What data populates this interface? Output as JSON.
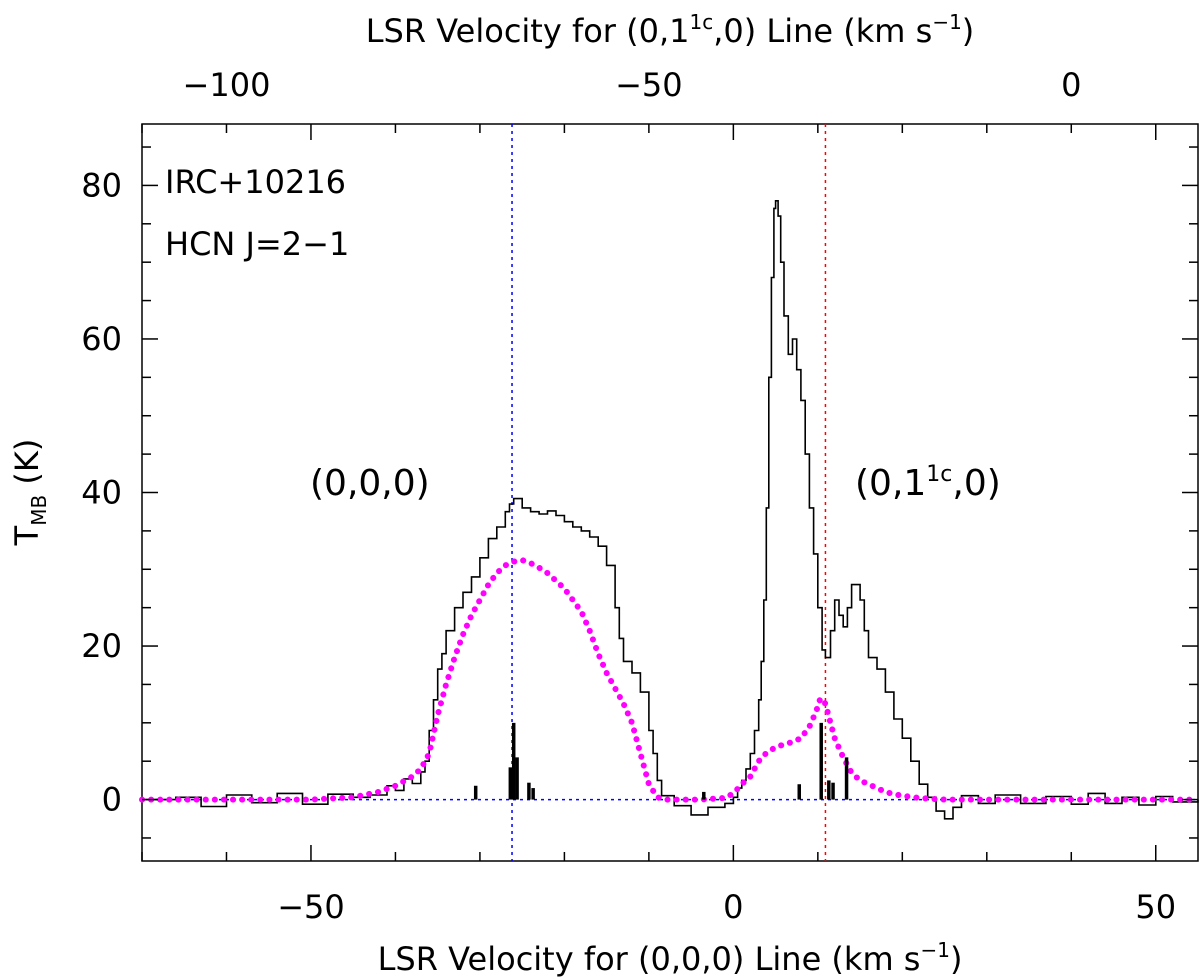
{
  "chart_data": {
    "type": "line",
    "object": "IRC+10216",
    "transition": "HCN J=2−1",
    "xlabel_prefix": "LSR Velocity for (0,0,0) Line (km s",
    "xlabel_sup": "−1",
    "xlabel_suffix": ")",
    "top_xlabel_prefix": "LSR Velocity for (0,1",
    "top_xlabel_sup1": "1c",
    "top_xlabel_mid": ",0) Line (km s",
    "top_xlabel_sup2": "−1",
    "top_xlabel_suffix": ")",
    "ylabel_main": "T",
    "ylabel_sub": "MB",
    "ylabel_suffix": " (K)",
    "xlim": [
      -70,
      55
    ],
    "ylim": [
      -8,
      88
    ],
    "top_xlim": [
      -110,
      15
    ],
    "x_ticks": [
      {
        "value": -50,
        "label": "−50"
      },
      {
        "value": 0,
        "label": "0"
      },
      {
        "value": 50,
        "label": "50"
      }
    ],
    "y_ticks": [
      {
        "value": 0,
        "label": "0"
      },
      {
        "value": 20,
        "label": "20"
      },
      {
        "value": 40,
        "label": "40"
      },
      {
        "value": 60,
        "label": "60"
      },
      {
        "value": 80,
        "label": "80"
      }
    ],
    "top_ticks": [
      {
        "value": -100,
        "label": "−100"
      },
      {
        "value": -50,
        "label": "−50"
      },
      {
        "value": 0,
        "label": "0"
      }
    ],
    "annotations": {
      "ground_prefix": "(0,0,0)",
      "vib_prefix": "(0,1",
      "vib_sup": "1c",
      "vib_suffix": ",0)"
    },
    "ref_lines": [
      {
        "name": "ground-state-velocity",
        "axis": "x",
        "value": -26.2,
        "color": "#0000ff"
      },
      {
        "name": "vibrational-state-velocity",
        "axis": "x",
        "value": 10.9,
        "color": "#ff0000"
      },
      {
        "name": "zero-baseline",
        "axis": "y",
        "value": 0,
        "color": "#0000ff"
      }
    ],
    "series": [
      {
        "name": "observed spectrum",
        "style": "histogram",
        "color": "#000000",
        "points": [
          [
            -70,
            0.0
          ],
          [
            -66,
            0.3
          ],
          [
            -63,
            -0.9
          ],
          [
            -60,
            0.6
          ],
          [
            -57,
            -0.4
          ],
          [
            -54,
            0.8
          ],
          [
            -51,
            -0.6
          ],
          [
            -48,
            0.7
          ],
          [
            -45,
            0.3
          ],
          [
            -43,
            0.6
          ],
          [
            -41,
            1.8
          ],
          [
            -40,
            1.2
          ],
          [
            -39,
            2.7
          ],
          [
            -38,
            2.1
          ],
          [
            -37,
            3.6
          ],
          [
            -36.5,
            5.0
          ],
          [
            -36,
            9.0
          ],
          [
            -35.5,
            13.0
          ],
          [
            -35,
            17.0
          ],
          [
            -34.5,
            19.0
          ],
          [
            -34,
            22.0
          ],
          [
            -33,
            25.0
          ],
          [
            -32,
            27.0
          ],
          [
            -31,
            29.0
          ],
          [
            -30,
            31.5
          ],
          [
            -29,
            34.0
          ],
          [
            -28,
            35.5
          ],
          [
            -27,
            37.5
          ],
          [
            -26.5,
            38.5
          ],
          [
            -26,
            39.2
          ],
          [
            -25,
            38.0
          ],
          [
            -24,
            37.5
          ],
          [
            -23,
            37.2
          ],
          [
            -22,
            37.6
          ],
          [
            -21,
            37.0
          ],
          [
            -20,
            36.2
          ],
          [
            -19,
            35.5
          ],
          [
            -18,
            35.0
          ],
          [
            -17,
            34.2
          ],
          [
            -16,
            33.0
          ],
          [
            -15,
            30.5
          ],
          [
            -14,
            25.0
          ],
          [
            -13.5,
            21.0
          ],
          [
            -13,
            18.0
          ],
          [
            -12,
            16.5
          ],
          [
            -11,
            14.0
          ],
          [
            -10,
            9.0
          ],
          [
            -9.5,
            6.0
          ],
          [
            -9,
            2.5
          ],
          [
            -8.5,
            0.5
          ],
          [
            -7,
            -0.8
          ],
          [
            -5,
            -2.0
          ],
          [
            -3,
            -1.0
          ],
          [
            -1,
            -0.5
          ],
          [
            0,
            0.3
          ],
          [
            0.5,
            1.5
          ],
          [
            1,
            2.5
          ],
          [
            1.5,
            4.0
          ],
          [
            2,
            6.0
          ],
          [
            2.5,
            9.0
          ],
          [
            3,
            13.0
          ],
          [
            3.3,
            18.0
          ],
          [
            3.6,
            26.0
          ],
          [
            3.9,
            38.0
          ],
          [
            4.2,
            55.0
          ],
          [
            4.5,
            68.0
          ],
          [
            4.8,
            77.0
          ],
          [
            5.0,
            78.0
          ],
          [
            5.3,
            76.0
          ],
          [
            5.6,
            70.0
          ],
          [
            6,
            63.0
          ],
          [
            6.5,
            58.0
          ],
          [
            7,
            60.0
          ],
          [
            7.5,
            56.0
          ],
          [
            8,
            52.0
          ],
          [
            8.5,
            45.0
          ],
          [
            9,
            38.0
          ],
          [
            9.5,
            32.0
          ],
          [
            10,
            25.0
          ],
          [
            10.5,
            19.5
          ],
          [
            10.9,
            18.5
          ],
          [
            11.5,
            22.0
          ],
          [
            12,
            26.0
          ],
          [
            12.5,
            24.0
          ],
          [
            13,
            22.5
          ],
          [
            13.5,
            25.0
          ],
          [
            14,
            28.0
          ],
          [
            15,
            26.0
          ],
          [
            15.5,
            22.0
          ],
          [
            16,
            18.5
          ],
          [
            17,
            17.0
          ],
          [
            18,
            14.0
          ],
          [
            19,
            10.5
          ],
          [
            20,
            8.0
          ],
          [
            21,
            5.0
          ],
          [
            22,
            2.0
          ],
          [
            23,
            0.3
          ],
          [
            24,
            -1.5
          ],
          [
            25,
            -2.5
          ],
          [
            26,
            -1.0
          ],
          [
            27,
            0.5
          ],
          [
            29,
            -0.5
          ],
          [
            31,
            0.6
          ],
          [
            34,
            -0.5
          ],
          [
            37,
            0.4
          ],
          [
            40,
            -0.6
          ],
          [
            42,
            0.8
          ],
          [
            44,
            -0.5
          ],
          [
            46,
            0.3
          ],
          [
            48,
            -0.7
          ],
          [
            50,
            0.4
          ],
          [
            52,
            -0.3
          ],
          [
            55,
            0.0
          ]
        ]
      },
      {
        "name": "model spectrum",
        "style": "dotted",
        "color": "#ff00ff",
        "points": [
          [
            -70,
            0.0
          ],
          [
            -60,
            0.0
          ],
          [
            -50,
            0.0
          ],
          [
            -45,
            0.3
          ],
          [
            -42,
            1.0
          ],
          [
            -40,
            1.8
          ],
          [
            -38,
            3.0
          ],
          [
            -37,
            4.0
          ],
          [
            -36,
            6.0
          ],
          [
            -35,
            11.0
          ],
          [
            -34,
            15.0
          ],
          [
            -33,
            18.5
          ],
          [
            -32,
            21.5
          ],
          [
            -31,
            24.0
          ],
          [
            -30,
            26.0
          ],
          [
            -29,
            28.0
          ],
          [
            -28,
            29.5
          ],
          [
            -27,
            30.5
          ],
          [
            -26,
            31.0
          ],
          [
            -25,
            31.2
          ],
          [
            -24,
            30.8
          ],
          [
            -23,
            30.2
          ],
          [
            -22,
            29.5
          ],
          [
            -21,
            28.5
          ],
          [
            -20,
            27.5
          ],
          [
            -19,
            26.0
          ],
          [
            -18,
            24.5
          ],
          [
            -17,
            22.0
          ],
          [
            -16,
            19.0
          ],
          [
            -15,
            16.5
          ],
          [
            -14,
            14.5
          ],
          [
            -13,
            12.5
          ],
          [
            -12,
            10.0
          ],
          [
            -11,
            6.0
          ],
          [
            -10,
            2.0
          ],
          [
            -9,
            0.3
          ],
          [
            -8,
            0.0
          ],
          [
            -4,
            0.0
          ],
          [
            -1,
            0.2
          ],
          [
            0,
            0.8
          ],
          [
            1,
            2.0
          ],
          [
            2,
            3.0
          ],
          [
            3,
            5.0
          ],
          [
            4,
            6.2
          ],
          [
            5,
            6.8
          ],
          [
            6,
            7.2
          ],
          [
            7,
            7.5
          ],
          [
            8,
            8.0
          ],
          [
            9,
            9.5
          ],
          [
            9.8,
            11.5
          ],
          [
            10.3,
            13.2
          ],
          [
            10.9,
            12.5
          ],
          [
            11.5,
            10.0
          ],
          [
            12,
            8.0
          ],
          [
            13,
            5.5
          ],
          [
            14,
            3.5
          ],
          [
            15,
            2.5
          ],
          [
            16,
            2.0
          ],
          [
            17,
            1.5
          ],
          [
            18,
            1.0
          ],
          [
            19,
            0.7
          ],
          [
            20,
            0.5
          ],
          [
            22,
            0.2
          ],
          [
            25,
            0.0
          ],
          [
            35,
            0.0
          ],
          [
            45,
            0.0
          ],
          [
            55,
            0.0
          ]
        ]
      }
    ],
    "channel_markers": [
      [
        -30.5,
        1.8
      ],
      [
        -26.4,
        4.2
      ],
      [
        -26.0,
        10.0
      ],
      [
        -25.6,
        5.5
      ],
      [
        -24.2,
        2.2
      ],
      [
        -23.7,
        1.5
      ],
      [
        -3.5,
        1.0
      ],
      [
        7.8,
        2.0
      ],
      [
        10.4,
        10.0
      ],
      [
        11.3,
        2.5
      ],
      [
        11.8,
        2.2
      ],
      [
        13.4,
        5.5
      ]
    ]
  }
}
